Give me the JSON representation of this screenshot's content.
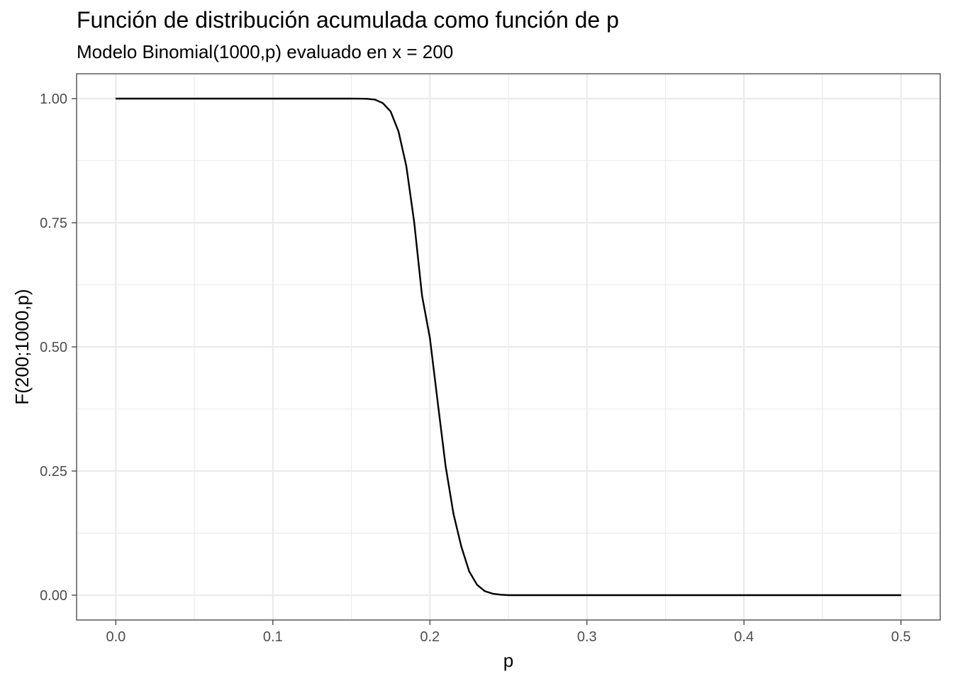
{
  "chart_data": {
    "type": "line",
    "title": "Función de distribución acumulada como función de p",
    "subtitle": "Modelo Binomial(1000,p) evaluado en x = 200",
    "xlabel": "p",
    "ylabel": "F(200;1000,p)",
    "xlim": [
      -0.025,
      0.525
    ],
    "ylim": [
      -0.05,
      1.05
    ],
    "x_ticks": [
      "0.0",
      "0.1",
      "0.2",
      "0.3",
      "0.4",
      "0.5"
    ],
    "y_ticks": [
      "0.00",
      "0.25",
      "0.50",
      "0.75",
      "1.00"
    ],
    "grid": true,
    "series": [
      {
        "x": [
          0.0,
          0.15,
          0.155,
          0.16,
          0.165,
          0.17,
          0.175,
          0.18,
          0.185,
          0.19,
          0.195,
          0.2,
          0.205,
          0.21,
          0.215,
          0.22,
          0.225,
          0.23,
          0.235,
          0.24,
          0.245,
          0.25,
          0.5
        ],
        "y": [
          1.0,
          1.0,
          0.9999,
          0.9996,
          0.998,
          0.991,
          0.974,
          0.934,
          0.864,
          0.751,
          0.603,
          0.518,
          0.388,
          0.26,
          0.164,
          0.098,
          0.048,
          0.021,
          0.008,
          0.003,
          0.001,
          0.0,
          0.0
        ],
        "color": "#000000"
      }
    ]
  }
}
